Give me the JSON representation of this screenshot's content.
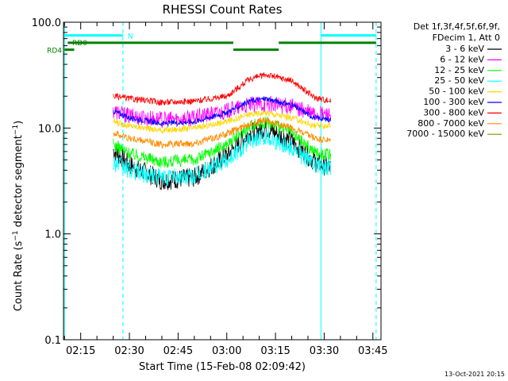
{
  "chart_data": {
    "type": "line",
    "title": "RHESSI Count Rates",
    "xlabel": "Start Time (15-Feb-08 02:09:42)",
    "ylabel": "Count Rate (s⁻¹ detector segment⁻¹)",
    "ylabel_parts": [
      "Count Rate (s",
      "−1",
      " detector segment",
      "−1",
      ")"
    ],
    "yscale": "log",
    "ylim": [
      0.1,
      100
    ],
    "xlim": [
      "02:09:42",
      "03:47:30"
    ],
    "y_ticks": [
      "0.1",
      "1.0",
      "10.0",
      "100.0"
    ],
    "x_ticks": [
      "02:15",
      "02:30",
      "02:45",
      "03:00",
      "03:15",
      "03:30",
      "03:45"
    ],
    "legend_header": [
      "Det 1f,3f,4f,5f,6f,9f,",
      "FDecim 1, Att 0"
    ],
    "series": [
      {
        "name": "3 - 6 keV",
        "color": "#000000",
        "x": [
          "02:25",
          "02:30",
          "02:40",
          "02:50",
          "03:00",
          "03:07",
          "03:12",
          "03:20",
          "03:27",
          "03:32"
        ],
        "values": [
          6.2,
          4.5,
          3.2,
          3.4,
          5.5,
          9.0,
          10.0,
          7.5,
          4.8,
          4.2
        ]
      },
      {
        "name": "6 - 12 keV",
        "color": "#ff00ff",
        "x": [
          "02:25",
          "02:30",
          "02:40",
          "02:50",
          "03:00",
          "03:07",
          "03:12",
          "03:20",
          "03:27",
          "03:32"
        ],
        "values": [
          14.5,
          13.0,
          12.0,
          12.5,
          14.5,
          16.5,
          17.0,
          16.0,
          13.5,
          13.5
        ]
      },
      {
        "name": "12 - 25 keV",
        "color": "#00ff00",
        "x": [
          "02:25",
          "02:30",
          "02:40",
          "02:50",
          "03:00",
          "03:07",
          "03:12",
          "03:20",
          "03:27",
          "03:32"
        ],
        "values": [
          7.0,
          5.8,
          4.8,
          5.0,
          7.0,
          10.5,
          11.5,
          9.0,
          6.0,
          5.5
        ]
      },
      {
        "name": "25 - 50 keV",
        "color": "#00ffff",
        "x": [
          "02:25",
          "02:30",
          "02:40",
          "02:50",
          "03:00",
          "03:07",
          "03:12",
          "03:20",
          "03:27",
          "03:32"
        ],
        "values": [
          4.8,
          4.0,
          3.4,
          3.5,
          5.0,
          7.5,
          8.5,
          6.5,
          4.5,
          4.3
        ]
      },
      {
        "name": "50 - 100 keV",
        "color": "#ffd700",
        "x": [
          "02:25",
          "02:30",
          "02:40",
          "02:50",
          "03:00",
          "03:07",
          "03:12",
          "03:20",
          "03:27",
          "03:32"
        ],
        "values": [
          11.5,
          10.5,
          9.5,
          10.0,
          11.5,
          13.5,
          14.0,
          12.5,
          10.5,
          10.5
        ]
      },
      {
        "name": "100 - 300 keV",
        "color": "#0000ff",
        "x": [
          "02:25",
          "02:30",
          "02:40",
          "02:50",
          "03:00",
          "03:07",
          "03:12",
          "03:20",
          "03:27",
          "03:32"
        ],
        "values": [
          14.5,
          12.5,
          11.0,
          11.5,
          14.0,
          18.0,
          19.0,
          16.5,
          12.5,
          12.0
        ]
      },
      {
        "name": "300 - 800 keV",
        "color": "#ff0000",
        "x": [
          "02:25",
          "02:30",
          "02:40",
          "02:50",
          "03:00",
          "03:07",
          "03:12",
          "03:20",
          "03:27",
          "03:32"
        ],
        "values": [
          20.0,
          19.0,
          17.5,
          18.0,
          20.0,
          29.0,
          32.0,
          28.0,
          19.5,
          18.0
        ]
      },
      {
        "name": "800 - 7000 keV",
        "color": "#ff8c00",
        "x": [
          "02:25",
          "02:30",
          "02:40",
          "02:50",
          "03:00",
          "03:07",
          "03:12",
          "03:20",
          "03:27",
          "03:32"
        ],
        "values": [
          9.0,
          8.0,
          7.0,
          7.2,
          8.8,
          11.0,
          11.8,
          10.0,
          8.0,
          7.5
        ]
      },
      {
        "name": "7000 - 15000 keV",
        "color": "#8b8b00",
        "x": [],
        "values": []
      }
    ],
    "grid": false,
    "legend_position": "right"
  },
  "attenuator_bars": [
    {
      "label": "RD0",
      "color": "#008000",
      "segments": [
        {
          "y": 64.0,
          "from": "02:11",
          "to": "03:02"
        },
        {
          "y": 55.0,
          "from": "03:02",
          "to": "03:16"
        },
        {
          "y": 64.0,
          "from": "03:16",
          "to": "03:46"
        }
      ]
    },
    {
      "label": "RD4",
      "color": "#008000",
      "segments": [
        {
          "y": 55.0,
          "from": "02:10",
          "to": "02:13"
        }
      ]
    },
    {
      "label": "N",
      "color": "#00ffff",
      "segments": [
        {
          "y": 75.0,
          "from": "02:10",
          "to": "02:28"
        },
        {
          "y": 75.0,
          "from": "03:29",
          "to": "03:46"
        }
      ]
    }
  ],
  "night_markers": [
    "02:10",
    "02:28",
    "03:29",
    "03:46"
  ],
  "footer_date": "13-Oct-2021 20:15"
}
